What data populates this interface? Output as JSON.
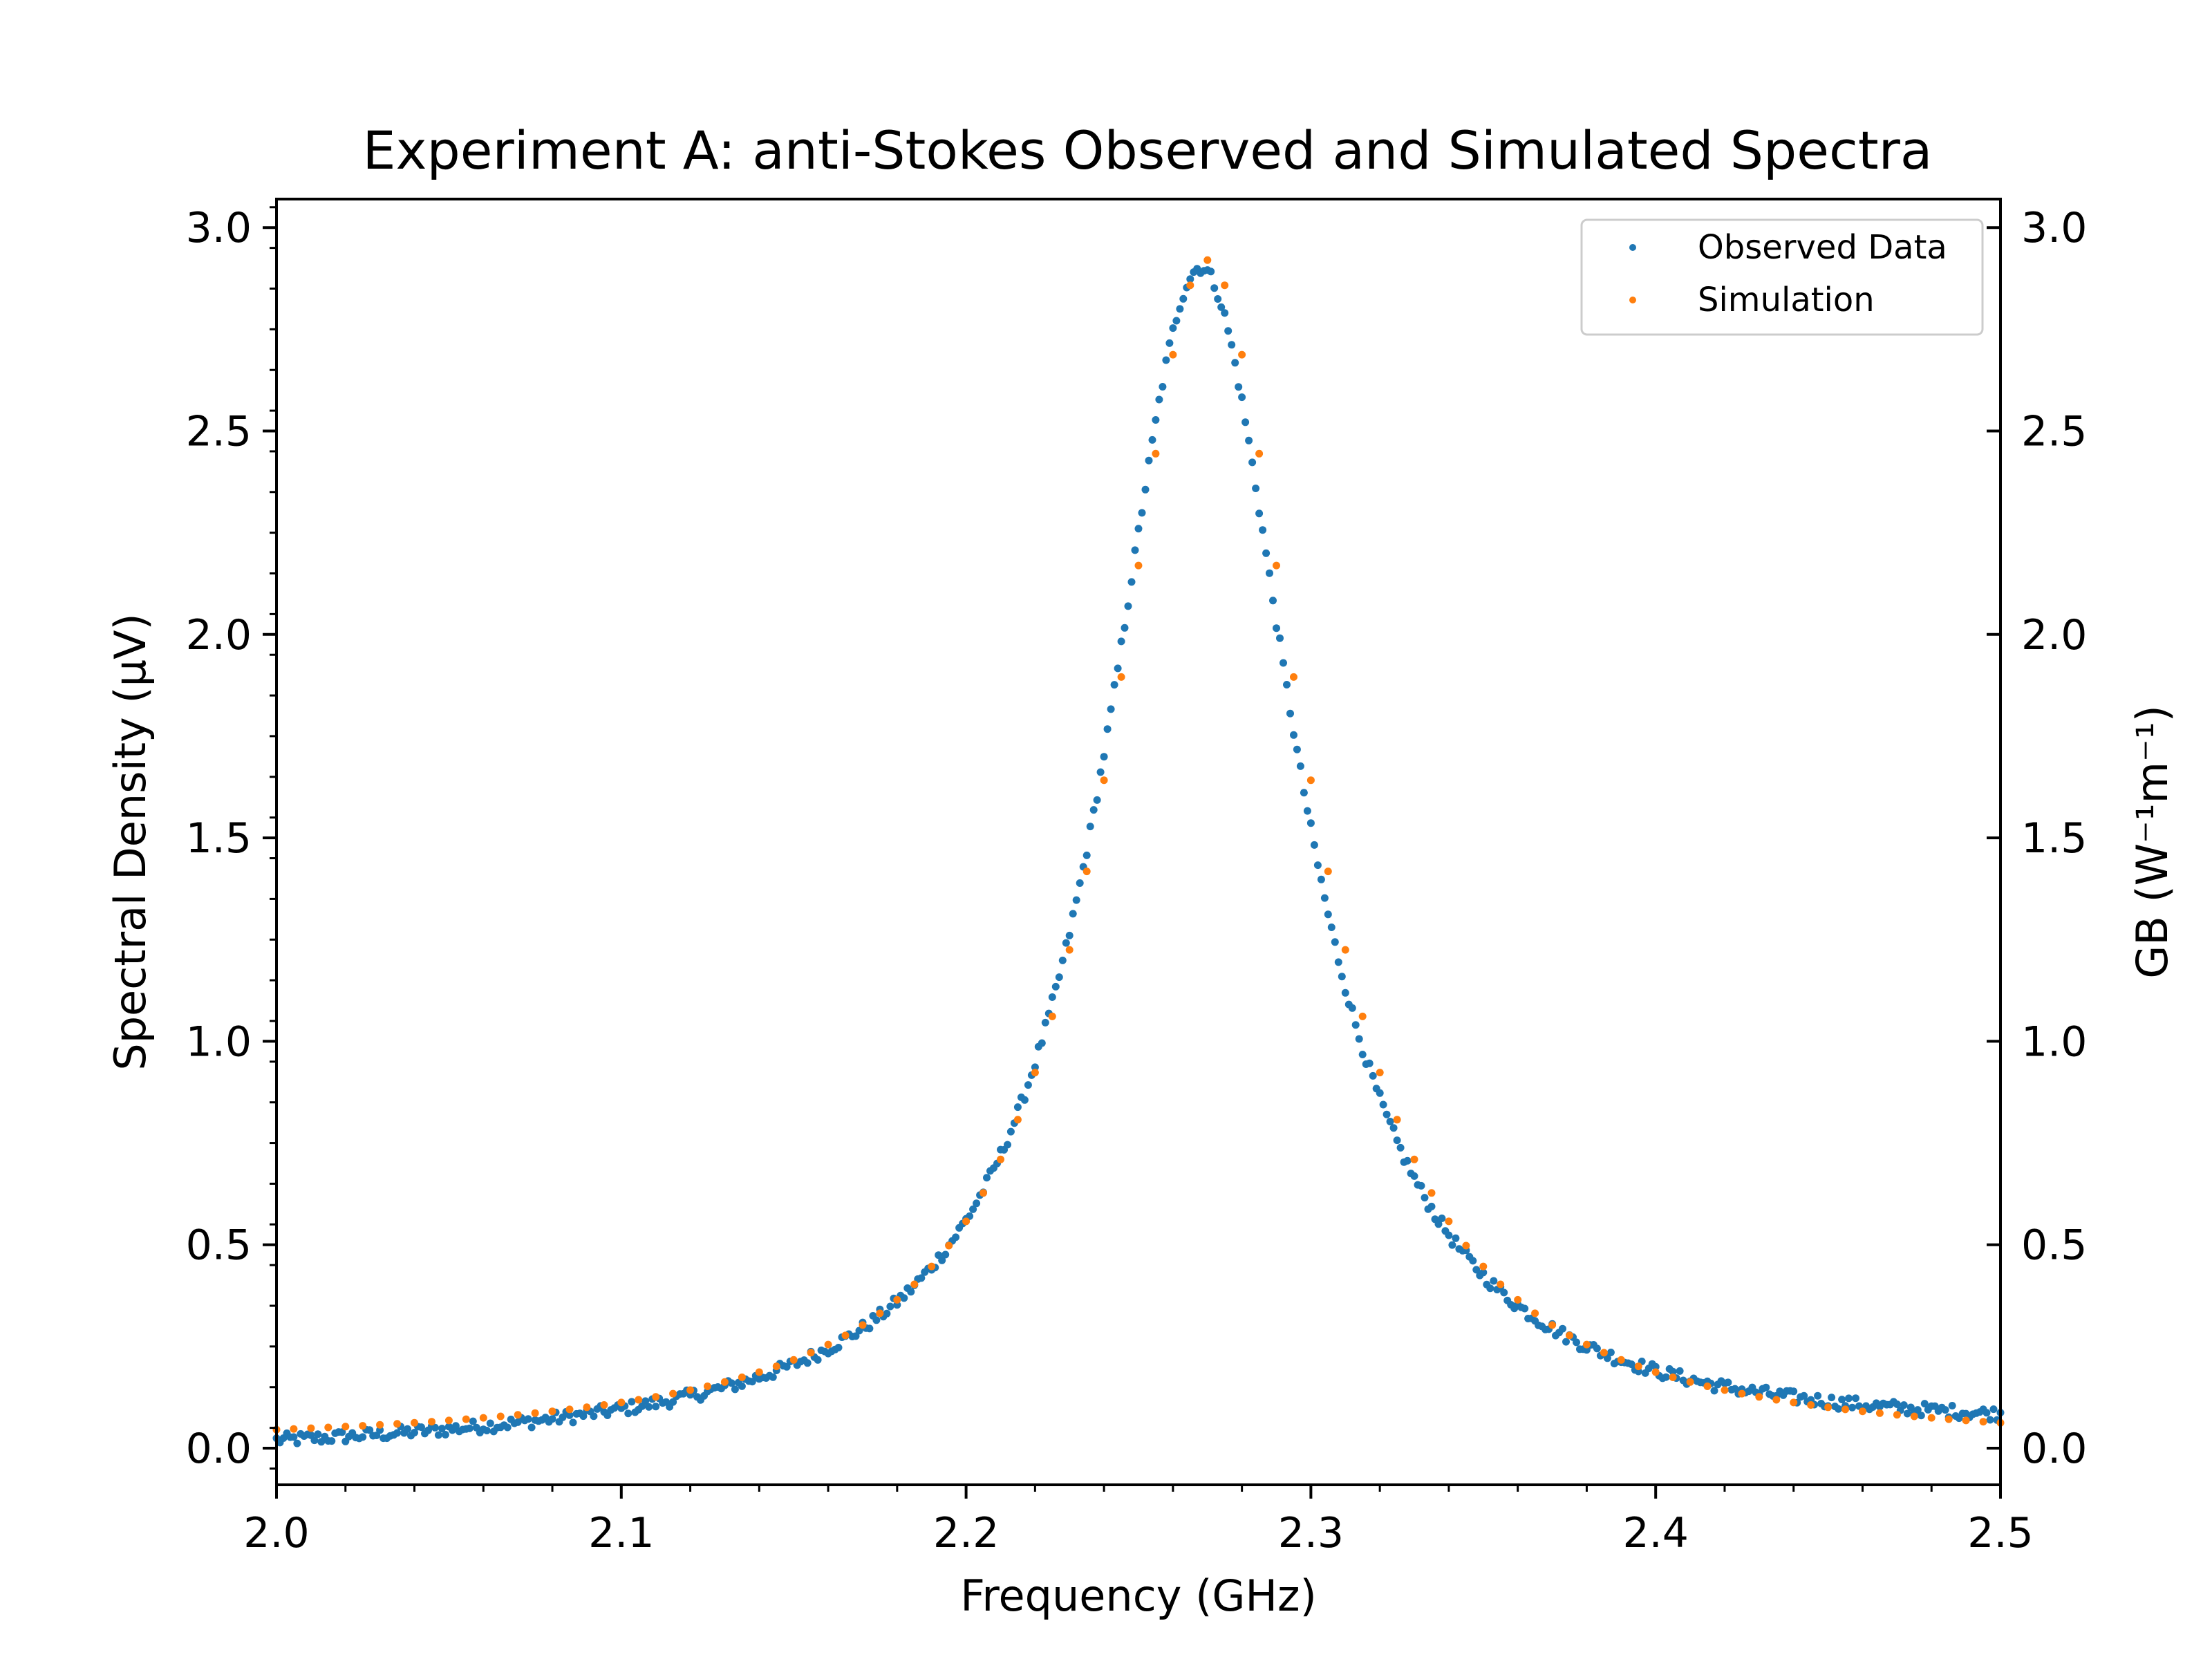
{
  "chart_data": {
    "type": "scatter",
    "title": "Experiment A: anti-Stokes Observed and Simulated Spectra",
    "xlabel": "Frequency (GHz)",
    "ylabel": "Spectral Density (μV)",
    "y2label": "GB (W⁻¹m⁻¹)",
    "xlim": [
      2.0,
      2.5
    ],
    "ylim": [
      -0.09,
      3.07
    ],
    "y2lim": [
      -0.09,
      3.07
    ],
    "xticks": [
      2.0,
      2.1,
      2.2,
      2.3,
      2.4,
      2.5
    ],
    "xtick_labels": [
      "2.0",
      "2.1",
      "2.2",
      "2.3",
      "2.4",
      "2.5"
    ],
    "yticks": [
      0.0,
      0.5,
      1.0,
      1.5,
      2.0,
      2.5,
      3.0
    ],
    "ytick_labels": [
      "0.0",
      "0.5",
      "1.0",
      "1.5",
      "2.0",
      "2.5",
      "3.0"
    ],
    "y2ticks": [
      0.0,
      0.5,
      1.0,
      1.5,
      2.0,
      2.5,
      3.0
    ],
    "y2tick_labels": [
      "0.0",
      "0.5",
      "1.0",
      "1.5",
      "2.0",
      "2.5",
      "3.0"
    ],
    "grid": false,
    "legend_position": "top-right",
    "series": [
      {
        "name": "Observed Data",
        "color": "#1f77b4",
        "model": "lorentzian",
        "center": 2.268,
        "hwhm": 0.0335,
        "amplitude": 2.9,
        "offset": 0.0,
        "x_start": 2.0,
        "x_end": 2.5,
        "x_step": 0.001
      },
      {
        "name": "Simulation",
        "color": "#ff7f0e",
        "model": "lorentzian",
        "center": 2.27,
        "hwhm": 0.034,
        "amplitude": 2.92,
        "offset": 0.0,
        "x_start": 2.0,
        "x_end": 2.5,
        "x_step": 0.005
      }
    ]
  }
}
